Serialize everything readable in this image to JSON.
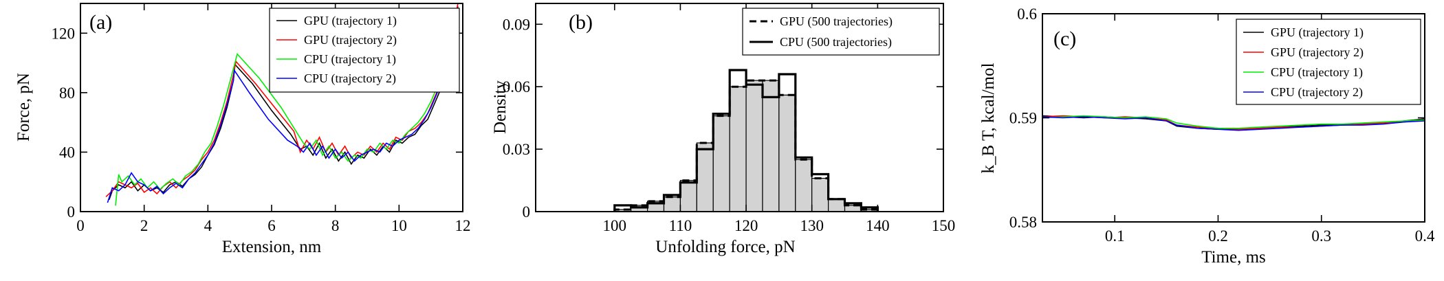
{
  "chart_data": [
    {
      "panel": "(a)",
      "type": "line",
      "xlabel": "Extension, nm",
      "ylabel": "Force, pN",
      "xlim": [
        0,
        12
      ],
      "ylim": [
        0,
        140
      ],
      "xticks": [
        0,
        2,
        4,
        6,
        8,
        10,
        12
      ],
      "yticks": [
        0,
        40,
        80,
        120
      ],
      "grid": false,
      "legend_position": "top-right",
      "series": [
        {
          "name": "GPU (trajectory 1)",
          "color": "#000000",
          "x": [
            0.9,
            1.0,
            1.2,
            1.4,
            1.6,
            1.8,
            2.0,
            2.2,
            2.4,
            2.6,
            2.8,
            3.0,
            3.2,
            3.4,
            3.6,
            3.8,
            4.0,
            4.2,
            4.4,
            4.6,
            4.8,
            4.85,
            5.4,
            6.0,
            6.6,
            6.9,
            7.1,
            7.3,
            7.5,
            7.7,
            7.9,
            8.1,
            8.3,
            8.5,
            8.7,
            8.9,
            9.1,
            9.3,
            9.5,
            9.7,
            9.9,
            10.1,
            10.3,
            10.5,
            10.7,
            10.9,
            11.1,
            11.3,
            11.5,
            11.7,
            11.85
          ],
          "y": [
            8,
            14,
            18,
            16,
            20,
            14,
            18,
            14,
            16,
            13,
            18,
            20,
            17,
            22,
            25,
            30,
            38,
            45,
            56,
            70,
            88,
            99,
            86,
            68,
            52,
            42,
            44,
            38,
            46,
            36,
            42,
            34,
            40,
            32,
            38,
            36,
            42,
            38,
            44,
            40,
            48,
            46,
            50,
            52,
            58,
            62,
            72,
            82,
            100,
            122,
            138
          ]
        },
        {
          "name": "GPU (trajectory 2)",
          "color": "#ff0000",
          "x": [
            0.8,
            1.0,
            1.2,
            1.4,
            1.6,
            1.8,
            2.0,
            2.2,
            2.4,
            2.6,
            2.8,
            3.0,
            3.2,
            3.4,
            3.6,
            3.8,
            4.0,
            4.2,
            4.4,
            4.6,
            4.8,
            4.88,
            5.5,
            6.1,
            6.7,
            6.9,
            7.1,
            7.3,
            7.5,
            7.7,
            7.9,
            8.1,
            8.3,
            8.5,
            8.7,
            8.9,
            9.1,
            9.3,
            9.5,
            9.7,
            9.9,
            10.1,
            10.3,
            10.5,
            10.7,
            10.9,
            11.1,
            11.3,
            11.5,
            11.7,
            11.85
          ],
          "y": [
            10,
            14,
            20,
            18,
            16,
            19,
            13,
            16,
            12,
            17,
            20,
            16,
            21,
            24,
            28,
            35,
            40,
            48,
            60,
            74,
            92,
            101,
            86,
            70,
            54,
            40,
            48,
            42,
            50,
            40,
            46,
            38,
            44,
            36,
            40,
            38,
            44,
            40,
            46,
            42,
            50,
            48,
            54,
            56,
            60,
            66,
            76,
            86,
            104,
            124,
            140
          ]
        },
        {
          "name": "CPU (trajectory 1)",
          "color": "#00ee00",
          "x": [
            1.1,
            1.2,
            1.3,
            1.5,
            1.7,
            1.9,
            2.1,
            2.3,
            2.5,
            2.7,
            2.9,
            3.1,
            3.3,
            3.5,
            3.7,
            3.9,
            4.1,
            4.3,
            4.5,
            4.7,
            4.85,
            4.92,
            5.6,
            6.3,
            7.0,
            7.2,
            7.4,
            7.6,
            7.8,
            8.0,
            8.2,
            8.4,
            8.6,
            8.8,
            9.0,
            9.2,
            9.4,
            9.6,
            9.8,
            10.0,
            10.2,
            10.4,
            10.6,
            10.8,
            11.0,
            11.2,
            11.4,
            11.6,
            11.8
          ],
          "y": [
            4,
            25,
            20,
            24,
            18,
            22,
            16,
            20,
            15,
            19,
            22,
            18,
            24,
            27,
            32,
            40,
            46,
            58,
            72,
            88,
            100,
            106,
            90,
            70,
            46,
            42,
            48,
            38,
            44,
            36,
            40,
            34,
            38,
            36,
            42,
            40,
            46,
            42,
            48,
            46,
            52,
            56,
            60,
            66,
            74,
            84,
            98,
            118,
            136
          ]
        },
        {
          "name": "CPU (trajectory 2)",
          "color": "#0000ff",
          "x": [
            0.85,
            1.0,
            1.2,
            1.4,
            1.6,
            1.8,
            2.0,
            2.2,
            2.4,
            2.6,
            2.8,
            3.0,
            3.2,
            3.4,
            3.6,
            3.8,
            4.0,
            4.2,
            4.4,
            4.6,
            4.8,
            4.83,
            5.3,
            5.9,
            6.5,
            6.8,
            7.0,
            7.2,
            7.4,
            7.6,
            7.8,
            8.0,
            8.2,
            8.4,
            8.6,
            8.8,
            9.0,
            9.2,
            9.4,
            9.6,
            9.8,
            10.0,
            10.2,
            10.4,
            10.6,
            10.8,
            11.0,
            11.2,
            11.4,
            11.6,
            11.8
          ],
          "y": [
            6,
            16,
            14,
            18,
            26,
            20,
            18,
            14,
            17,
            12,
            16,
            19,
            16,
            22,
            26,
            32,
            38,
            46,
            58,
            72,
            88,
            95,
            80,
            62,
            48,
            44,
            40,
            46,
            38,
            44,
            36,
            42,
            36,
            40,
            34,
            38,
            40,
            42,
            40,
            46,
            44,
            48,
            50,
            52,
            56,
            62,
            70,
            80,
            96,
            120,
            136
          ]
        }
      ]
    },
    {
      "panel": "(b)",
      "type": "bar",
      "xlabel": "Unfolding force, pN",
      "ylabel": "Density",
      "xlim": [
        88,
        150
      ],
      "ylim": [
        0,
        0.1
      ],
      "xticks": [
        100,
        110,
        120,
        130,
        140,
        150
      ],
      "yticks": [
        0,
        0.03,
        0.06,
        0.09
      ],
      "ytick_labels": [
        "0",
        "0.03",
        "0.06",
        "0.09"
      ],
      "grid": false,
      "legend_position": "top-right",
      "bin_edges": [
        100,
        102.5,
        105,
        107.5,
        110,
        112.5,
        115,
        117.5,
        120,
        122.5,
        125,
        127.5,
        130,
        132.5,
        135,
        137.5,
        140
      ],
      "series": [
        {
          "name": "GPU (500 trajectories)",
          "style": "dashed",
          "values": [
            0.001,
            0.003,
            0.005,
            0.007,
            0.015,
            0.033,
            0.046,
            0.06,
            0.063,
            0.063,
            0.056,
            0.025,
            0.016,
            0.006,
            0.003,
            0.001
          ]
        },
        {
          "name": "CPU (500 trajectories)",
          "style": "solid",
          "values": [
            0.003,
            0.002,
            0.004,
            0.008,
            0.014,
            0.03,
            0.047,
            0.068,
            0.061,
            0.055,
            0.066,
            0.026,
            0.018,
            0.006,
            0.004,
            0.002
          ]
        }
      ]
    },
    {
      "panel": "(c)",
      "type": "line",
      "xlabel": "Time, ms",
      "ylabel": "k_B T, kcal/mol",
      "xlim": [
        0.03,
        0.4
      ],
      "ylim": [
        0.58,
        0.6
      ],
      "xticks": [
        0.1,
        0.2,
        0.3,
        0.4
      ],
      "yticks": [
        0.58,
        0.59,
        0.6
      ],
      "grid": false,
      "legend_position": "top-right",
      "series": [
        {
          "name": "GPU (trajectory 1)",
          "color": "#000000",
          "x": [
            0.03,
            0.05,
            0.07,
            0.09,
            0.11,
            0.13,
            0.15,
            0.16,
            0.18,
            0.2,
            0.22,
            0.24,
            0.26,
            0.28,
            0.3,
            0.32,
            0.34,
            0.36,
            0.38,
            0.4
          ],
          "y": [
            0.5902,
            0.5901,
            0.59,
            0.5901,
            0.59,
            0.5899,
            0.5897,
            0.5892,
            0.589,
            0.5889,
            0.5889,
            0.589,
            0.5891,
            0.5892,
            0.5893,
            0.5893,
            0.5894,
            0.5895,
            0.5897,
            0.5899
          ]
        },
        {
          "name": "GPU (trajectory 2)",
          "color": "#ff0000",
          "x": [
            0.03,
            0.05,
            0.07,
            0.09,
            0.11,
            0.13,
            0.15,
            0.16,
            0.18,
            0.2,
            0.22,
            0.24,
            0.26,
            0.28,
            0.3,
            0.32,
            0.34,
            0.36,
            0.38,
            0.4
          ],
          "y": [
            0.5901,
            0.5902,
            0.5901,
            0.59,
            0.5901,
            0.59,
            0.5898,
            0.5893,
            0.5891,
            0.589,
            0.5889,
            0.589,
            0.5891,
            0.5891,
            0.5892,
            0.5893,
            0.5894,
            0.5895,
            0.5896,
            0.5898
          ]
        },
        {
          "name": "CPU (trajectory 1)",
          "color": "#00ee00",
          "x": [
            0.03,
            0.05,
            0.07,
            0.09,
            0.11,
            0.13,
            0.15,
            0.16,
            0.18,
            0.2,
            0.22,
            0.24,
            0.26,
            0.28,
            0.3,
            0.32,
            0.34,
            0.36,
            0.38,
            0.4
          ],
          "y": [
            0.59,
            0.5901,
            0.5902,
            0.5901,
            0.59,
            0.5901,
            0.5899,
            0.5895,
            0.5892,
            0.589,
            0.589,
            0.5891,
            0.5892,
            0.5893,
            0.5894,
            0.5894,
            0.5895,
            0.5896,
            0.5897,
            0.5898
          ]
        },
        {
          "name": "CPU (trajectory 2)",
          "color": "#0000ff",
          "x": [
            0.03,
            0.05,
            0.07,
            0.09,
            0.11,
            0.13,
            0.15,
            0.16,
            0.18,
            0.2,
            0.22,
            0.24,
            0.26,
            0.28,
            0.3,
            0.32,
            0.34,
            0.36,
            0.38,
            0.4
          ],
          "y": [
            0.5901,
            0.59,
            0.5901,
            0.59,
            0.5899,
            0.59,
            0.5897,
            0.5893,
            0.589,
            0.5889,
            0.5888,
            0.5889,
            0.589,
            0.5891,
            0.5892,
            0.5893,
            0.5893,
            0.5894,
            0.5896,
            0.5897
          ]
        }
      ]
    }
  ]
}
